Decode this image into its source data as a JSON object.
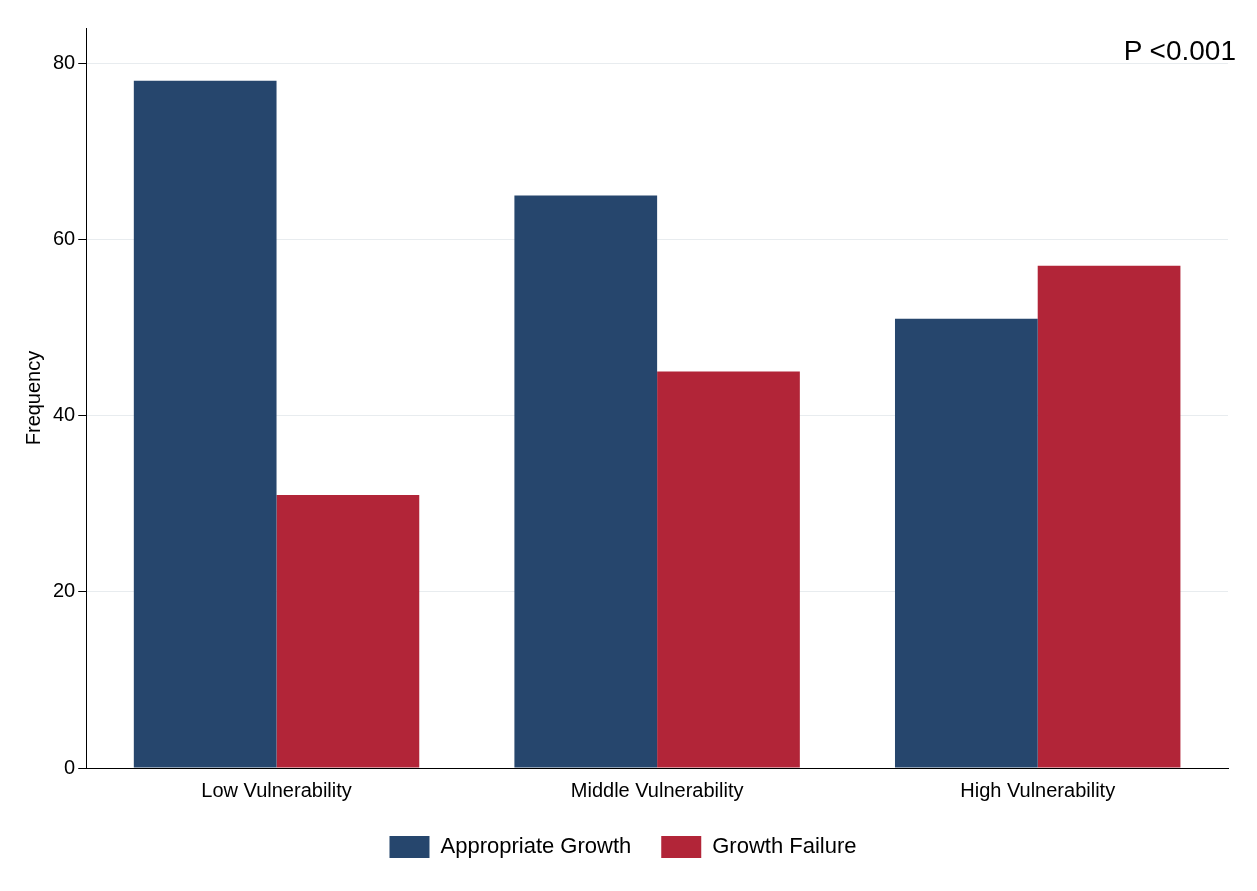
{
  "chart_data": {
    "type": "bar",
    "ylabel": "Frequency",
    "categories": [
      "Low Vulnerability",
      "Middle Vulnerability",
      "High Vulnerability"
    ],
    "series": [
      {
        "name": "Appropriate Growth",
        "color": "#26466d",
        "values": [
          78,
          65,
          51
        ]
      },
      {
        "name": "Growth Failure",
        "color": "#b22538",
        "values": [
          31,
          45,
          57
        ]
      }
    ],
    "ylim": [
      0,
      84
    ],
    "yticks": [
      0,
      20,
      40,
      60,
      80
    ],
    "grid": "y",
    "legend": "bottom",
    "annotations": [
      "P <0.001"
    ]
  }
}
